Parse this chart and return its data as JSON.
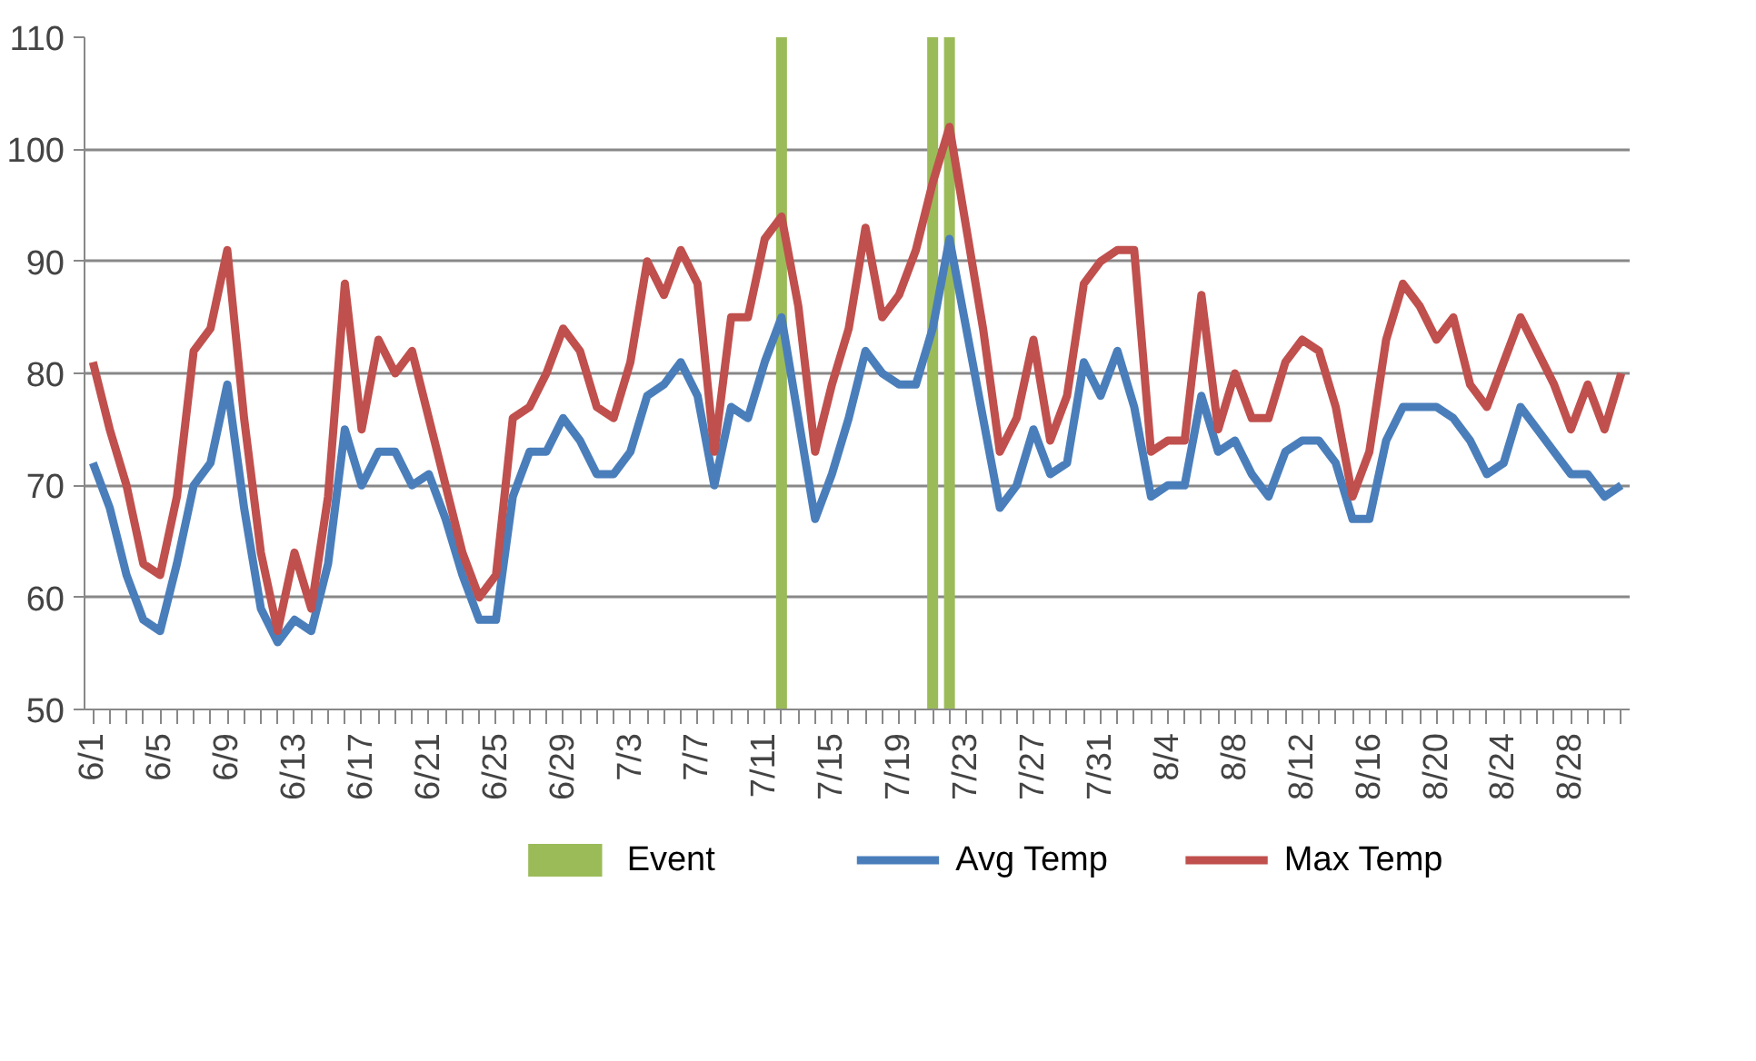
{
  "chart_data": {
    "type": "line",
    "categories": [
      "6/1",
      null,
      null,
      null,
      "6/5",
      null,
      null,
      null,
      "6/9",
      null,
      null,
      null,
      "6/13",
      null,
      null,
      null,
      "6/17",
      null,
      null,
      null,
      "6/21",
      null,
      null,
      null,
      "6/25",
      null,
      null,
      null,
      "6/29",
      null,
      null,
      null,
      "7/3",
      null,
      null,
      null,
      "7/7",
      null,
      null,
      null,
      "7/11",
      null,
      null,
      null,
      "7/15",
      null,
      null,
      null,
      "7/19",
      null,
      null,
      null,
      "7/23",
      null,
      null,
      null,
      "7/27",
      null,
      null,
      null,
      "7/31",
      null,
      null,
      null,
      "8/4",
      null,
      null,
      null,
      "8/8",
      null,
      null,
      null,
      "8/12",
      null,
      null,
      null,
      "8/16",
      null,
      null,
      null,
      "8/20",
      null,
      null,
      null,
      "8/24",
      null,
      null,
      null,
      "8/28",
      null,
      null,
      null
    ],
    "series": [
      {
        "name": "Event",
        "type": "bar",
        "color": "#9bbb59",
        "values": [
          null,
          null,
          null,
          null,
          null,
          null,
          null,
          null,
          null,
          null,
          null,
          null,
          null,
          null,
          null,
          null,
          null,
          null,
          null,
          null,
          null,
          null,
          null,
          null,
          null,
          null,
          null,
          null,
          null,
          null,
          null,
          null,
          null,
          null,
          null,
          null,
          null,
          null,
          null,
          null,
          null,
          110,
          null,
          null,
          null,
          null,
          null,
          null,
          null,
          null,
          110,
          110,
          null,
          null,
          null,
          null,
          null,
          null,
          null,
          null,
          null,
          null,
          null,
          null,
          null,
          null,
          null,
          null,
          null,
          null,
          null,
          null,
          null,
          null,
          null,
          null,
          null,
          null,
          null,
          null,
          null,
          null,
          null,
          null,
          null,
          null,
          null,
          null,
          null,
          null,
          null,
          null
        ]
      },
      {
        "name": "Avg Temp",
        "color": "#4a7ebb",
        "values": [
          72,
          68,
          62,
          58,
          57,
          63,
          70,
          72,
          79,
          68,
          59,
          56,
          58,
          57,
          63,
          75,
          70,
          73,
          73,
          70,
          71,
          67,
          62,
          58,
          58,
          69,
          73,
          73,
          76,
          74,
          71,
          71,
          73,
          78,
          79,
          81,
          78,
          70,
          77,
          76,
          81,
          85,
          76,
          67,
          71,
          76,
          82,
          80,
          79,
          79,
          84,
          92,
          84,
          76,
          68,
          70,
          75,
          71,
          72,
          81,
          78,
          82,
          77,
          69,
          70,
          70,
          78,
          73,
          74,
          71,
          69,
          73,
          74,
          74,
          72,
          67,
          67,
          74,
          77,
          77,
          77,
          76,
          74,
          71,
          72,
          77,
          75,
          73,
          71,
          71,
          69,
          70
        ]
      },
      {
        "name": "Max Temp",
        "color": "#c0504d",
        "values": [
          81,
          75,
          70,
          63,
          62,
          69,
          82,
          84,
          91,
          76,
          64,
          57,
          64,
          59,
          69,
          88,
          75,
          83,
          80,
          82,
          76,
          70,
          64,
          60,
          62,
          76,
          77,
          80,
          84,
          82,
          77,
          76,
          81,
          90,
          87,
          91,
          88,
          73,
          85,
          85,
          92,
          94,
          86,
          73,
          79,
          84,
          93,
          85,
          87,
          91,
          97,
          102,
          93,
          84,
          73,
          76,
          83,
          74,
          78,
          88,
          90,
          91,
          91,
          73,
          74,
          74,
          87,
          75,
          80,
          76,
          76,
          81,
          83,
          82,
          77,
          69,
          73,
          83,
          88,
          86,
          83,
          85,
          79,
          77,
          81,
          85,
          82,
          79,
          75,
          79,
          75,
          80
        ]
      }
    ],
    "ylim": [
      50,
      110
    ],
    "yticks": [
      50,
      60,
      70,
      80,
      90,
      100,
      110
    ],
    "grid": "y",
    "legend": "bottom",
    "marker": "none",
    "line_style": "solid"
  }
}
